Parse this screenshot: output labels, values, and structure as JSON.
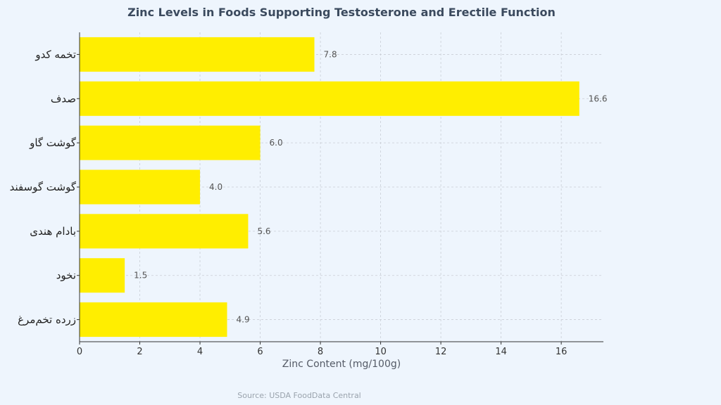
{
  "chart_data": {
    "type": "bar",
    "orientation": "horizontal",
    "title": "Zinc Levels in Foods Supporting Testosterone and Erectile Function",
    "xlabel": "Zinc Content (mg/100g)",
    "ylabel": "",
    "xlim": [
      0,
      17.4
    ],
    "xticks": [
      0,
      2,
      4,
      6,
      8,
      10,
      12,
      14,
      16
    ],
    "categories": [
      "تخمه کدو",
      "صدف",
      "گوشت گاو",
      "گوشت گوسفند",
      "بادام هندی",
      "نخود",
      "زرده تخم‌مرغ"
    ],
    "values": [
      7.8,
      16.6,
      6.0,
      4.0,
      5.6,
      1.5,
      4.9
    ],
    "value_labels": [
      "7.8",
      "16.6",
      "6.0",
      "4.0",
      "5.6",
      "1.5",
      "4.9"
    ],
    "bar_color": "#ffee00",
    "grid": true,
    "source": "Source: USDA FoodData Central"
  }
}
